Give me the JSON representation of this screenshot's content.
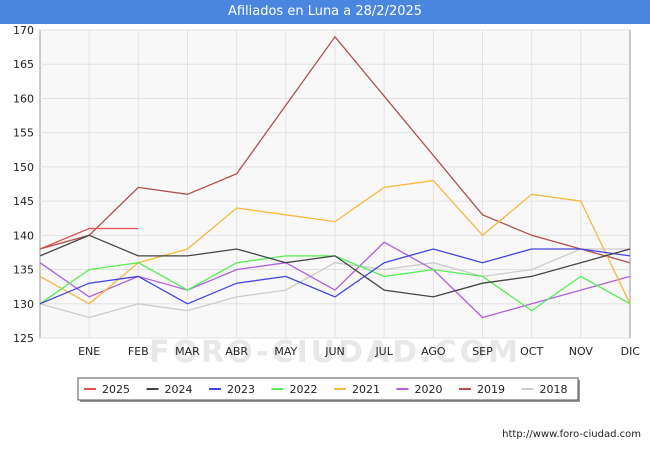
{
  "title": "Afiliados en Luna a 28/2/2025",
  "footer": "http://www.foro-ciudad.com",
  "watermark": "FORO-CIUDAD.COM",
  "chart_data": {
    "type": "line",
    "title": "Afiliados en Luna a 28/2/2025",
    "xlabel": "",
    "ylabel": "",
    "categories": [
      "",
      "ENE",
      "FEB",
      "MAR",
      "ABR",
      "MAY",
      "JUN",
      "JUL",
      "AGO",
      "SEP",
      "OCT",
      "NOV",
      "DIC"
    ],
    "ylim": [
      125,
      170
    ],
    "yticks": [
      125,
      130,
      135,
      140,
      145,
      150,
      155,
      160,
      165,
      170
    ],
    "grid": true,
    "legend_position": "bottom",
    "series": [
      {
        "name": "2025",
        "color": "#e05050",
        "values": [
          138,
          141,
          141,
          null,
          null,
          null,
          null,
          null,
          null,
          null,
          null,
          null,
          null
        ]
      },
      {
        "name": "2024",
        "color": "#444444",
        "values": [
          137,
          140,
          137,
          137,
          138,
          136,
          137,
          132,
          131,
          133,
          134,
          136,
          138
        ]
      },
      {
        "name": "2023",
        "color": "#4444e0",
        "values": [
          130,
          133,
          134,
          130,
          133,
          134,
          131,
          136,
          138,
          136,
          138,
          138,
          137
        ]
      },
      {
        "name": "2022",
        "color": "#55ee55",
        "values": [
          130,
          135,
          136,
          132,
          136,
          137,
          137,
          134,
          135,
          134,
          129,
          134,
          130
        ]
      },
      {
        "name": "2021",
        "color": "#f5b942",
        "values": [
          134,
          130,
          136,
          138,
          144,
          143,
          142,
          147,
          148,
          140,
          146,
          145,
          130
        ]
      },
      {
        "name": "2020",
        "color": "#b060e0",
        "values": [
          136,
          131,
          134,
          132,
          135,
          136,
          132,
          139,
          135,
          128,
          130,
          132,
          134
        ]
      },
      {
        "name": "2019",
        "color": "#b05050",
        "values": [
          138,
          140,
          147,
          146,
          149,
          null,
          169,
          null,
          null,
          143,
          140,
          138,
          136
        ]
      },
      {
        "name": "2018",
        "color": "#cccccc",
        "values": [
          130,
          128,
          130,
          129,
          131,
          132,
          136,
          135,
          136,
          134,
          135,
          138,
          138
        ]
      }
    ]
  }
}
